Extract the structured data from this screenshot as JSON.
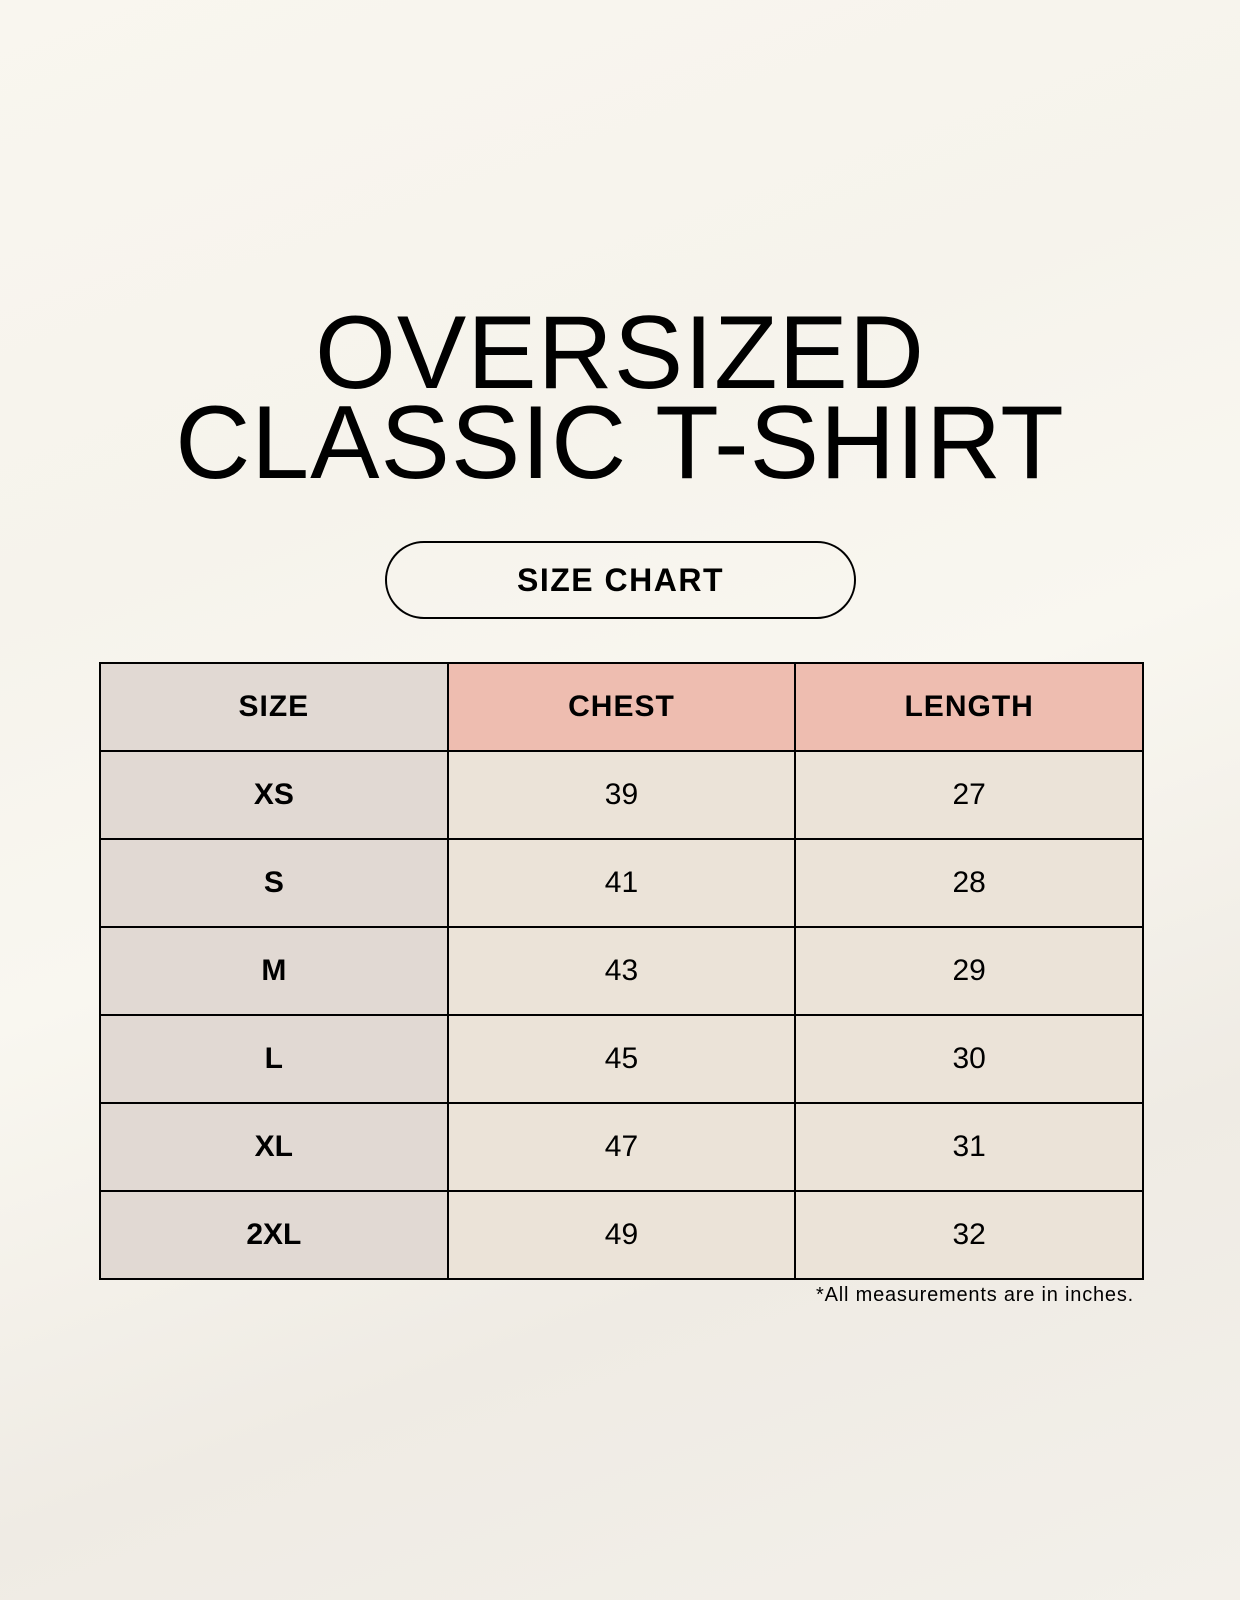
{
  "title_lines": [
    "OVERSIZED",
    "CLASSIC T-SHIRT"
  ],
  "subtitle": "SIZE CHART",
  "table": {
    "headers": [
      "SIZE",
      "CHEST",
      "LENGTH"
    ],
    "rows": [
      [
        "XS",
        "39",
        "27"
      ],
      [
        "S",
        "41",
        "28"
      ],
      [
        "M",
        "43",
        "29"
      ],
      [
        "L",
        "45",
        "30"
      ],
      [
        "XL",
        "47",
        "31"
      ],
      [
        "2XL",
        "49",
        "32"
      ]
    ]
  },
  "footnote": "*All measurements are in inches.",
  "colors": {
    "size_column": "#e1d9d3",
    "header_accent": "#eebdb0",
    "value_cells": "#ebe3d8"
  }
}
